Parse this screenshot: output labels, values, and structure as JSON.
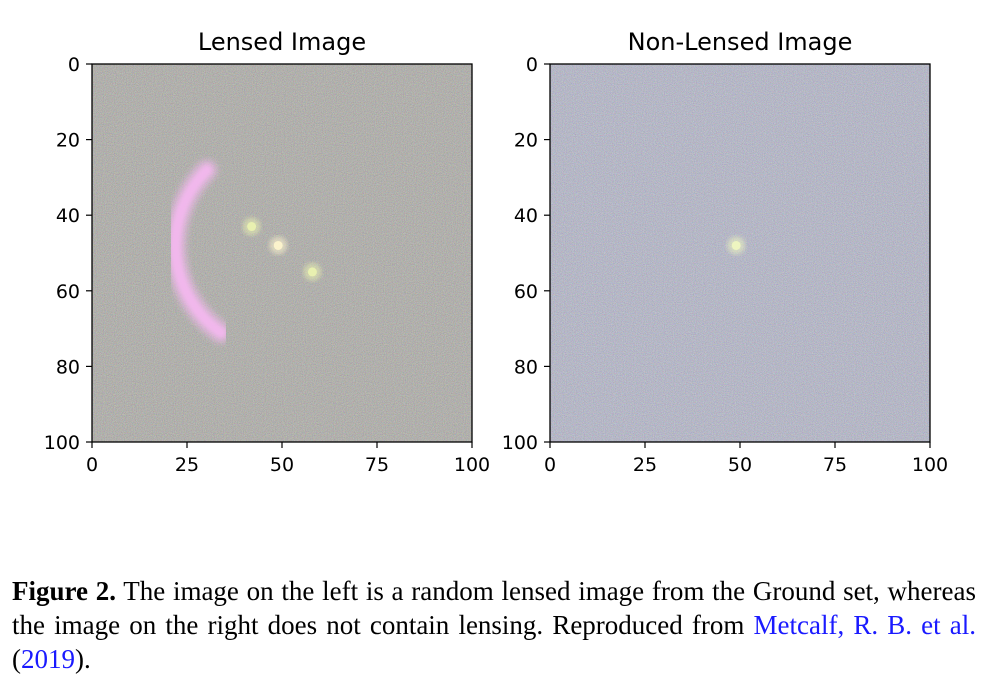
{
  "chart_data": [
    {
      "type": "heatmap",
      "title": "Lensed Image",
      "xlim": [
        0,
        100
      ],
      "ylim": [
        100,
        0
      ],
      "x_ticks": [
        "0",
        "25",
        "50",
        "75",
        "100"
      ],
      "y_ticks": [
        "0",
        "20",
        "40",
        "60",
        "80",
        "100"
      ],
      "background": "noise",
      "noise_tint": "#9a9890",
      "features": [
        {
          "kind": "arc",
          "cx": 50,
          "cy": 48,
          "r": 28,
          "theta_start": 135,
          "theta_end": 235,
          "color": "#f3b8ee"
        },
        {
          "kind": "point",
          "x": 49,
          "y": 48,
          "color": "#fbf3cc"
        },
        {
          "kind": "point",
          "x": 42,
          "y": 43,
          "color": "#e8f0b0"
        },
        {
          "kind": "point",
          "x": 58,
          "y": 55,
          "color": "#e8f0b0"
        }
      ]
    },
    {
      "type": "heatmap",
      "title": "Non-Lensed Image",
      "xlim": [
        0,
        100
      ],
      "ylim": [
        100,
        0
      ],
      "x_ticks": [
        "0",
        "25",
        "50",
        "75",
        "100"
      ],
      "y_ticks": [
        "0",
        "20",
        "40",
        "60",
        "80",
        "100"
      ],
      "background": "noise",
      "noise_tint": "#a4a8c8",
      "features": [
        {
          "kind": "point",
          "x": 49,
          "y": 48,
          "color": "#eef5c0"
        }
      ]
    }
  ],
  "caption": {
    "label": "Figure 2.",
    "text": " The image on the left is a random lensed image from the Ground set, whereas the image on the right does not contain lensing. Reproduced from ",
    "ref_authors": "Metcalf, R. B. et al.",
    "ref_open": " (",
    "ref_year": "2019",
    "ref_close": ")."
  }
}
